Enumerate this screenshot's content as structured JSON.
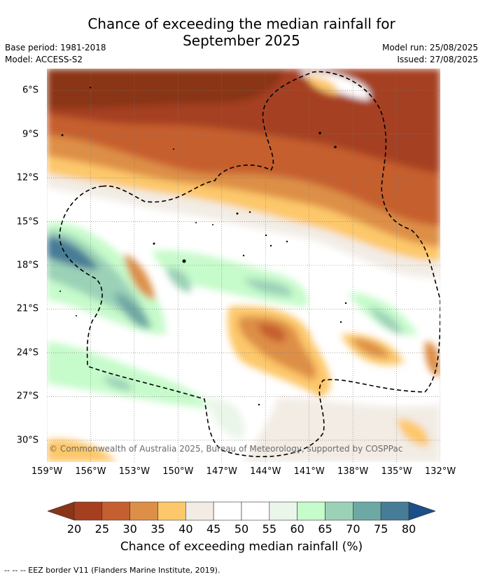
{
  "title_line1": "Chance of exceeding the median rainfall for",
  "title_line2": "September 2025",
  "meta": {
    "base_period": "Base period: 1981-2018",
    "model": "Model: ACCESS-S2",
    "model_run": "Model run: 25/08/2025",
    "issued": "Issued: 27/08/2025"
  },
  "map": {
    "lat_labels": [
      "6°S",
      "9°S",
      "12°S",
      "15°S",
      "18°S",
      "21°S",
      "24°S",
      "27°S",
      "30°S"
    ],
    "lat_values": [
      6,
      9,
      12,
      15,
      18,
      21,
      24,
      27,
      30
    ],
    "lon_labels": [
      "159°W",
      "156°W",
      "153°W",
      "150°W",
      "147°W",
      "144°W",
      "141°W",
      "138°W",
      "135°W",
      "132°W"
    ],
    "lon_values": [
      159,
      156,
      153,
      150,
      147,
      144,
      141,
      138,
      135,
      132
    ],
    "lat_range": [
      4.5,
      31.5
    ],
    "lon_range": [
      159,
      132
    ],
    "copyright": "© Commonwealth of Australia 2025, Bureau of Meteorology, supported by COSPPac"
  },
  "colorbar": {
    "title": "Chance of exceeding median rainfall (%)",
    "ticks": [
      "20",
      "25",
      "30",
      "35",
      "40",
      "45",
      "50",
      "55",
      "60",
      "65",
      "70",
      "75",
      "80"
    ],
    "colors": [
      "#a63f20",
      "#c65f2f",
      "#dd8f47",
      "#fdc86b",
      "#f2ece5",
      "#ffffff",
      "#ffffff",
      "#eaf6e9",
      "#c6fbcb",
      "#9bd1b7",
      "#6ea8a4",
      "#467c96"
    ],
    "under_color": "#8a3418",
    "over_color": "#1a4f87"
  },
  "footer": "--  --  -- EEZ border V11 (Flanders Marine Institute, 2019)."
}
